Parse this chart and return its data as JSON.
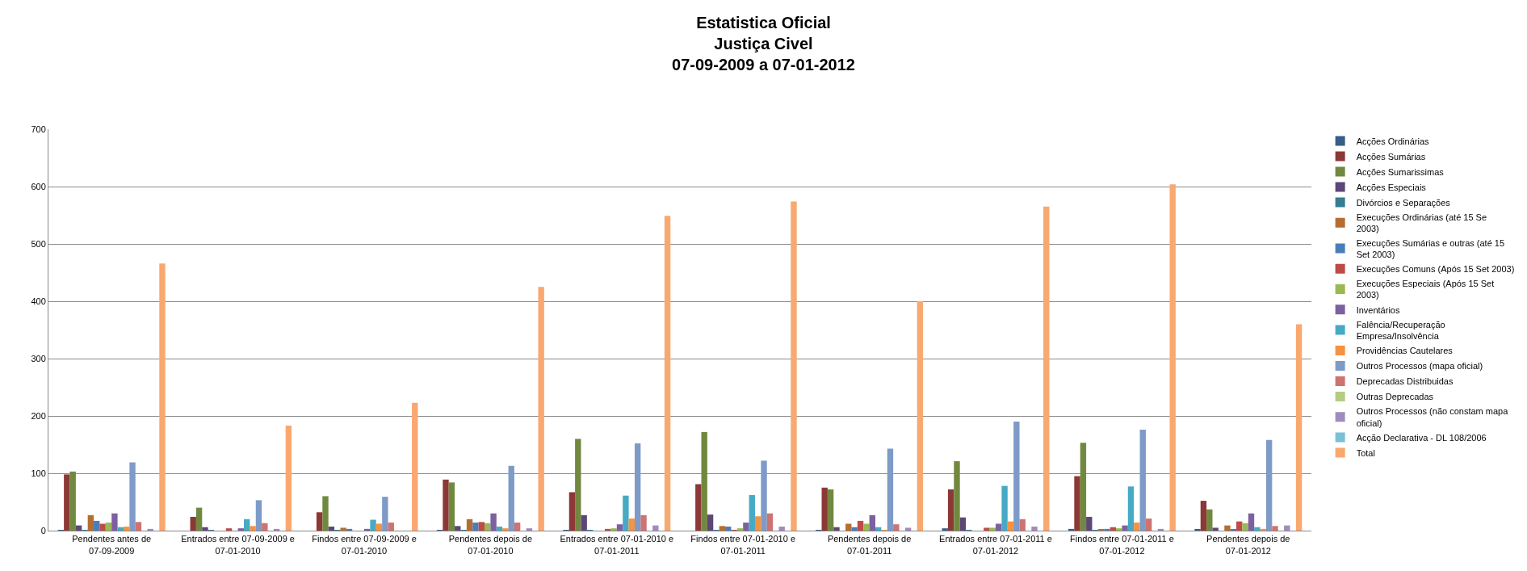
{
  "chart_data": {
    "type": "bar",
    "title": "Estatistica Oficial\nJustiça Civel\n07-09-2009 a 07-01-2012",
    "categories": [
      "Pendentes antes de 07-09-2009",
      "Entrados entre 07-09-2009 e 07-01-2010",
      "Findos entre 07-09-2009 e 07-01-2010",
      "Pendentes depois de 07-01-2010",
      "Entrados entre 07-01-2010 e 07-01-2011",
      "Findos entre 07-01-2010 e 07-01-2011",
      "Pendentes depois de 07-01-2011",
      "Entrados entre 07-01-2011 e 07-01-2012",
      "Findos entre 07-01-2011 e 07-01-2012",
      "Pendentes depois de 07-01-2012"
    ],
    "series": [
      {
        "name": "Acções Ordinárias",
        "color": "#385d8a",
        "values": [
          1,
          0,
          0,
          1,
          1,
          0,
          1,
          4,
          3,
          2
        ]
      },
      {
        "name": "Acções Sumárias",
        "color": "#8c3836",
        "values": [
          98,
          24,
          32,
          89,
          67,
          81,
          75,
          72,
          95,
          52
        ]
      },
      {
        "name": "Acções Sumarissimas",
        "color": "#71893f",
        "values": [
          103,
          40,
          60,
          84,
          160,
          172,
          72,
          121,
          153,
          37
        ]
      },
      {
        "name": "Acções Especiais",
        "color": "#5c4776",
        "values": [
          9,
          6,
          7,
          8,
          27,
          28,
          6,
          23,
          24,
          5
        ]
      },
      {
        "name": "Divórcios e Separações",
        "color": "#357d91",
        "values": [
          1,
          1,
          1,
          1,
          1,
          1,
          0,
          1,
          1,
          0
        ]
      },
      {
        "name": "Execuções Ordinárias (até 15 Se 2003)",
        "color": "#b66d31",
        "values": [
          27,
          0,
          5,
          20,
          0,
          8,
          12,
          0,
          2,
          9
        ]
      },
      {
        "name": "Execuções Sumárias e outras (até 15 Set 2003)",
        "color": "#4a7ebb",
        "values": [
          17,
          0,
          3,
          14,
          0,
          7,
          6,
          0,
          3,
          2
        ]
      },
      {
        "name": "Execuções Comuns (Após 15 Set 2003)",
        "color": "#be4b48",
        "values": [
          12,
          4,
          0,
          15,
          3,
          1,
          17,
          5,
          6,
          16
        ]
      },
      {
        "name": "Execuções Especiais (Após 15 Set 2003)",
        "color": "#98b954",
        "values": [
          14,
          null,
          null,
          13,
          4,
          4,
          12,
          5,
          4,
          13
        ]
      },
      {
        "name": "Inventários",
        "color": "#7d60a0",
        "values": [
          30,
          4,
          3,
          30,
          11,
          14,
          27,
          12,
          9,
          30
        ]
      },
      {
        "name": "Falência/Recuperação Empresa/Insolvência",
        "color": "#46aac5",
        "values": [
          6,
          20,
          19,
          7,
          61,
          62,
          6,
          78,
          77,
          6
        ]
      },
      {
        "name": "Providências Cautelares",
        "color": "#f69240",
        "values": [
          7,
          8,
          12,
          4,
          21,
          25,
          1,
          16,
          14,
          3
        ]
      },
      {
        "name": "Outros Processos (mapa oficial)",
        "color": "#7e9bc8",
        "values": [
          119,
          53,
          59,
          113,
          152,
          122,
          143,
          190,
          176,
          158
        ]
      },
      {
        "name": "Deprecadas Distribuidas",
        "color": "#cd7371",
        "values": [
          15,
          13,
          14,
          14,
          27,
          30,
          11,
          20,
          21,
          8
        ]
      },
      {
        "name": "Outras Deprecadas",
        "color": "#b3cc82",
        "values": [
          0,
          0,
          0,
          0,
          0,
          0,
          0,
          0,
          0,
          0
        ]
      },
      {
        "name": "Outros Processos (não constam mapa oficial)",
        "color": "#a18bbd",
        "values": [
          3,
          3,
          null,
          4,
          9,
          7,
          5,
          7,
          3,
          9
        ]
      },
      {
        "name": "Acção Declarativa - DL 108/2006",
        "color": "#79c1d6",
        "values": [
          0,
          0,
          0,
          0,
          0,
          0,
          0,
          0,
          0,
          0
        ]
      },
      {
        "name": "Total",
        "color": "#f9a870",
        "values": [
          466,
          183,
          223,
          425,
          549,
          574,
          400,
          565,
          604,
          360
        ]
      }
    ],
    "ylim": [
      0,
      700
    ],
    "yticks": [
      0,
      100,
      200,
      300,
      400,
      500,
      600,
      700
    ],
    "grid": "y",
    "legend": "right"
  }
}
